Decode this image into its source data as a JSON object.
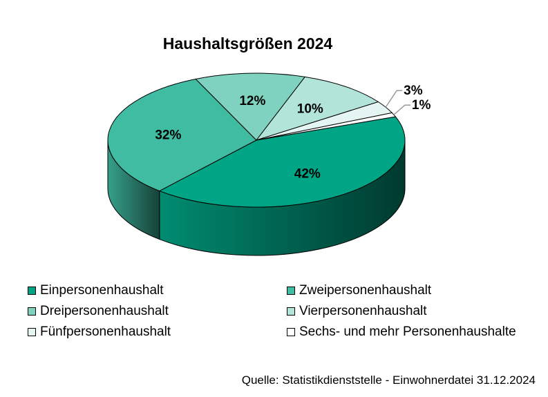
{
  "chart_data": {
    "type": "pie",
    "title": "Haushaltsgrößen 2024",
    "categories": [
      "Einpersonenhaushalt",
      "Zweipersonenhaushalt",
      "Dreipersonenhaushalt",
      "Vierpersonenhaushalt",
      "Fünfpersonenhaushalt",
      "Sechs- und mehr Personenhaushalte"
    ],
    "values": [
      42,
      32,
      12,
      10,
      3,
      1
    ],
    "labels": [
      "42%",
      "32%",
      "12%",
      "10%",
      "3%",
      "1%"
    ],
    "colors": [
      "#00a585",
      "#40bca2",
      "#7fd2c0",
      "#b2e4da",
      "#e5f6f2",
      "#ffffff"
    ],
    "legend_position": "bottom",
    "source": "Quelle: Statistikdienststelle - Einwohnerdatei 31.12.2024"
  }
}
